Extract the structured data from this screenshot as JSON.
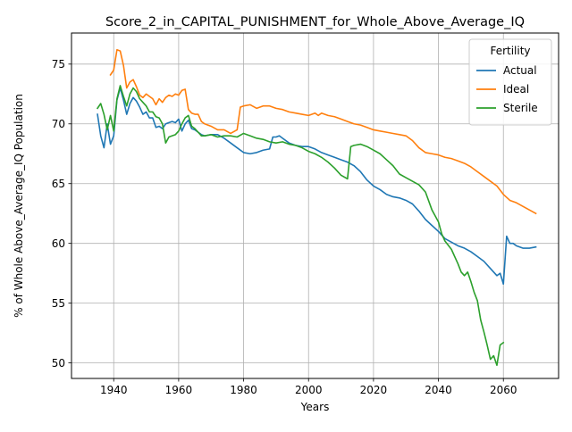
{
  "chart_data": {
    "type": "line",
    "title": "Score_2_in_CAPITAL_PUNISHMENT_for_Whole_Above_Average_IQ",
    "xlabel": "Years",
    "ylabel": "% of Whole Above_Average_IQ Population",
    "xlim": [
      1927,
      2077
    ],
    "ylim": [
      48.7,
      77.6
    ],
    "xticks": [
      1940,
      1960,
      1980,
      2000,
      2020,
      2040,
      2060
    ],
    "yticks": [
      50,
      55,
      60,
      65,
      70,
      75
    ],
    "grid": true,
    "legend": {
      "title": "Fertility",
      "position": "top-right"
    },
    "series": [
      {
        "name": "Actual",
        "color": "#1f77b4",
        "x": [
          1935,
          1936,
          1937,
          1938,
          1939,
          1940,
          1941,
          1942,
          1943,
          1944,
          1945,
          1946,
          1947,
          1948,
          1949,
          1950,
          1951,
          1952,
          1953,
          1954,
          1955,
          1956,
          1957,
          1958,
          1959,
          1960,
          1961,
          1962,
          1963,
          1964,
          1965,
          1966,
          1967,
          1968,
          1970,
          1972,
          1974,
          1976,
          1978,
          1980,
          1982,
          1984,
          1986,
          1988,
          1989,
          1990,
          1991,
          1992,
          1994,
          1996,
          1998,
          2000,
          2002,
          2004,
          2006,
          2008,
          2010,
          2012,
          2014,
          2016,
          2018,
          2020,
          2022,
          2024,
          2026,
          2028,
          2030,
          2032,
          2034,
          2036,
          2038,
          2040,
          2042,
          2044,
          2046,
          2048,
          2050,
          2052,
          2054,
          2056,
          2058,
          2059,
          2060,
          2061,
          2062,
          2063,
          2064,
          2066,
          2068,
          2070
        ],
        "values": [
          70.8,
          69.0,
          68.0,
          70.0,
          68.3,
          69.0,
          72.0,
          73.0,
          72.0,
          70.8,
          71.7,
          72.2,
          71.9,
          71.4,
          70.8,
          71.0,
          70.5,
          70.5,
          69.7,
          69.8,
          69.6,
          70.0,
          70.1,
          70.2,
          70.1,
          70.4,
          69.4,
          70.0,
          70.3,
          69.6,
          69.5,
          69.3,
          69.1,
          69.0,
          69.1,
          69.1,
          68.8,
          68.4,
          68.0,
          67.6,
          67.5,
          67.6,
          67.8,
          67.9,
          68.9,
          68.9,
          69.0,
          68.8,
          68.4,
          68.2,
          68.1,
          68.1,
          67.9,
          67.6,
          67.4,
          67.2,
          67.0,
          66.8,
          66.5,
          66.0,
          65.3,
          64.8,
          64.5,
          64.1,
          63.9,
          63.8,
          63.6,
          63.3,
          62.7,
          62.0,
          61.5,
          61.0,
          60.4,
          60.1,
          59.8,
          59.6,
          59.3,
          58.9,
          58.5,
          57.9,
          57.3,
          57.5,
          56.6,
          60.6,
          60.0,
          60.0,
          59.8,
          59.6,
          59.6,
          59.7
        ]
      },
      {
        "name": "Ideal",
        "color": "#ff7f0e",
        "x": [
          1939,
          1940,
          1941,
          1942,
          1943,
          1944,
          1945,
          1946,
          1947,
          1948,
          1949,
          1950,
          1951,
          1952,
          1953,
          1954,
          1955,
          1956,
          1957,
          1958,
          1959,
          1960,
          1961,
          1962,
          1963,
          1964,
          1965,
          1966,
          1967,
          1968,
          1970,
          1972,
          1974,
          1976,
          1978,
          1979,
          1980,
          1982,
          1984,
          1986,
          1988,
          1990,
          1992,
          1994,
          1996,
          1998,
          2000,
          2002,
          2003,
          2004,
          2006,
          2008,
          2010,
          2012,
          2014,
          2016,
          2018,
          2020,
          2022,
          2024,
          2026,
          2028,
          2030,
          2032,
          2034,
          2036,
          2038,
          2040,
          2042,
          2044,
          2046,
          2048,
          2050,
          2052,
          2054,
          2056,
          2058,
          2060,
          2062,
          2064,
          2066,
          2068,
          2070
        ],
        "values": [
          74.1,
          74.5,
          76.2,
          76.1,
          74.9,
          73.0,
          73.5,
          73.7,
          73.1,
          72.4,
          72.2,
          72.5,
          72.3,
          72.1,
          71.6,
          72.1,
          71.8,
          72.2,
          72.4,
          72.3,
          72.5,
          72.4,
          72.8,
          72.9,
          71.2,
          70.9,
          70.8,
          70.8,
          70.2,
          70.0,
          69.8,
          69.5,
          69.5,
          69.2,
          69.5,
          71.4,
          71.5,
          71.6,
          71.3,
          71.5,
          71.5,
          71.3,
          71.2,
          71.0,
          70.9,
          70.8,
          70.7,
          70.9,
          70.7,
          70.9,
          70.7,
          70.6,
          70.4,
          70.2,
          70.0,
          69.9,
          69.7,
          69.5,
          69.4,
          69.3,
          69.2,
          69.1,
          69.0,
          68.6,
          68.0,
          67.6,
          67.5,
          67.4,
          67.2,
          67.1,
          66.9,
          66.7,
          66.4,
          66.0,
          65.6,
          65.2,
          64.8,
          64.1,
          63.6,
          63.4,
          63.1,
          62.8,
          62.5
        ]
      },
      {
        "name": "Sterile",
        "color": "#2ca02c",
        "x": [
          1935,
          1936,
          1937,
          1938,
          1939,
          1940,
          1941,
          1942,
          1943,
          1944,
          1945,
          1946,
          1947,
          1948,
          1949,
          1950,
          1951,
          1952,
          1953,
          1954,
          1955,
          1956,
          1957,
          1958,
          1959,
          1960,
          1961,
          1962,
          1963,
          1964,
          1965,
          1966,
          1967,
          1968,
          1970,
          1972,
          1974,
          1976,
          1978,
          1980,
          1982,
          1984,
          1986,
          1988,
          1990,
          1992,
          1994,
          1996,
          1998,
          2000,
          2002,
          2004,
          2006,
          2008,
          2010,
          2012,
          2013,
          2014,
          2016,
          2018,
          2020,
          2022,
          2024,
          2026,
          2028,
          2030,
          2032,
          2034,
          2036,
          2038,
          2039,
          2040,
          2041,
          2042,
          2044,
          2046,
          2047,
          2048,
          2049,
          2050,
          2051,
          2052,
          2053,
          2054,
          2055,
          2056,
          2057,
          2058,
          2059,
          2060
        ],
        "values": [
          71.3,
          71.7,
          70.8,
          69.5,
          70.7,
          69.4,
          72.1,
          73.2,
          72.3,
          71.5,
          72.5,
          73.0,
          72.7,
          72.1,
          71.8,
          71.5,
          71.0,
          71.0,
          70.6,
          70.5,
          70.0,
          68.4,
          68.9,
          69.0,
          69.1,
          69.4,
          70.0,
          70.5,
          70.7,
          69.8,
          69.6,
          69.3,
          69.0,
          69.0,
          69.1,
          68.9,
          69.0,
          69.0,
          68.9,
          69.2,
          69.0,
          68.8,
          68.7,
          68.5,
          68.4,
          68.5,
          68.3,
          68.2,
          68.0,
          67.7,
          67.5,
          67.2,
          66.8,
          66.3,
          65.7,
          65.4,
          68.1,
          68.2,
          68.3,
          68.1,
          67.8,
          67.5,
          67.0,
          66.5,
          65.8,
          65.5,
          65.2,
          64.9,
          64.3,
          62.8,
          62.3,
          61.8,
          60.8,
          60.2,
          59.5,
          58.3,
          57.6,
          57.3,
          57.6,
          56.8,
          55.9,
          55.2,
          53.6,
          52.6,
          51.5,
          50.3,
          50.6,
          49.8,
          51.5,
          51.7
        ]
      }
    ]
  }
}
